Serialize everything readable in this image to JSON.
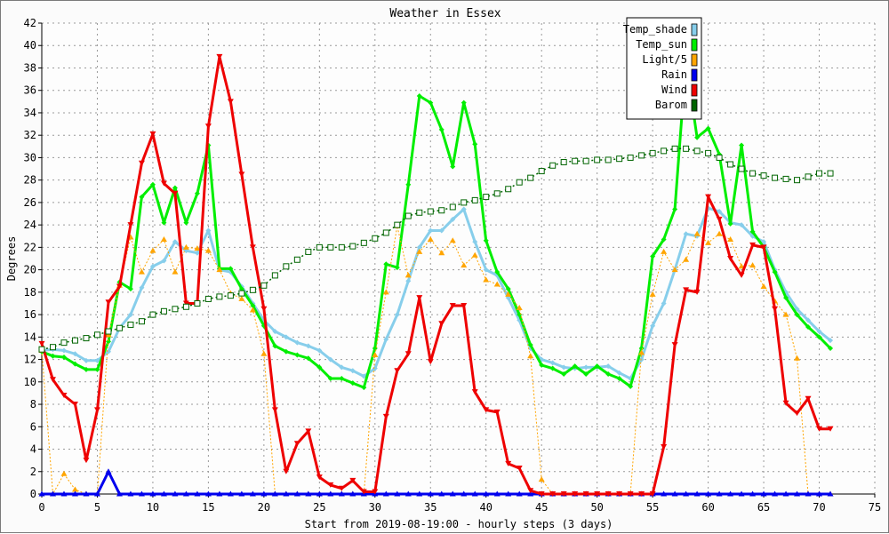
{
  "chart_data": {
    "type": "line",
    "title": "Weather in Essex",
    "xlabel": "Start from 2019-08-19:00 - hourly steps (3 days)",
    "ylabel": "Degrees",
    "xlim": [
      0,
      75
    ],
    "ylim": [
      0,
      42
    ],
    "xticks": [
      0,
      5,
      10,
      15,
      20,
      25,
      30,
      35,
      40,
      45,
      50,
      55,
      60,
      65,
      70,
      75
    ],
    "yticks": [
      0,
      2,
      4,
      6,
      8,
      10,
      12,
      14,
      16,
      18,
      20,
      22,
      24,
      26,
      28,
      30,
      32,
      34,
      36,
      38,
      40,
      42
    ],
    "grid": true,
    "legend_position": "top-right",
    "series": [
      {
        "name": "Temp_shade",
        "color": "#87ceeb",
        "values": [
          12.8,
          12.9,
          12.8,
          12.5,
          11.9,
          11.9,
          12.7,
          14.8,
          16.0,
          18.4,
          20.3,
          20.8,
          22.5,
          21.7,
          21.5,
          23.5,
          20.0,
          19.8,
          18.5,
          17.0,
          15.5,
          14.5,
          14.0,
          13.5,
          13.2,
          12.8,
          12.0,
          11.3,
          11.0,
          10.5,
          11.2,
          13.8,
          16.0,
          19.0,
          22.0,
          23.5,
          23.5,
          24.5,
          25.4,
          22.5,
          20.0,
          19.5,
          17.5,
          15.5,
          13.0,
          12.0,
          11.7,
          11.3,
          11.2,
          11.3,
          11.3,
          11.4,
          10.8,
          10.3,
          12.0,
          15.0,
          17.0,
          20.0,
          23.2,
          23.0,
          25.5,
          25.2,
          24.2,
          24.0,
          23.0,
          22.5,
          20.0,
          18.0,
          16.5,
          15.5,
          14.5,
          13.7
        ]
      },
      {
        "name": "Temp_sun",
        "color": "#00ee00",
        "values": [
          12.7,
          12.3,
          12.2,
          11.6,
          11.1,
          11.1,
          13.6,
          18.9,
          18.3,
          26.5,
          27.6,
          24.2,
          27.3,
          24.2,
          26.8,
          31.1,
          20.1,
          20.1,
          18.3,
          16.8,
          15.0,
          13.2,
          12.7,
          12.4,
          12.1,
          11.3,
          10.3,
          10.3,
          9.9,
          9.5,
          13.0,
          20.5,
          20.2,
          27.6,
          35.5,
          34.9,
          32.5,
          29.2,
          34.9,
          31.2,
          22.6,
          19.8,
          18.3,
          16.0,
          13.3,
          11.5,
          11.2,
          10.7,
          11.4,
          10.7,
          11.4,
          10.7,
          10.3,
          9.6,
          13.0,
          21.2,
          22.7,
          25.4,
          38.6,
          31.8,
          32.6,
          30.3,
          24.1,
          31.1,
          23.4,
          22.0,
          19.8,
          17.5,
          16.0,
          14.9,
          14.0,
          13.0
        ]
      },
      {
        "name": "Light/5",
        "color": "#ffa500",
        "values": [
          12.8,
          0.0,
          1.8,
          0.4,
          0.0,
          0.0,
          14.2,
          18.6,
          22.9,
          19.8,
          21.7,
          22.7,
          19.8,
          22.0,
          21.9,
          21.7,
          20.0,
          17.9,
          17.4,
          16.4,
          12.5,
          0.0,
          0.0,
          0.0,
          0.0,
          0.0,
          0.0,
          0.0,
          0.0,
          0.0,
          12.4,
          18.0,
          23.9,
          19.5,
          21.6,
          22.7,
          21.5,
          22.6,
          20.4,
          21.3,
          19.1,
          18.7,
          17.8,
          16.6,
          12.3,
          1.3,
          0.0,
          0.0,
          0.0,
          0.0,
          0.0,
          0.0,
          0.0,
          0.0,
          12.6,
          17.8,
          21.6,
          20.0,
          20.9,
          23.2,
          22.4,
          23.2,
          22.7,
          20.3,
          20.4,
          18.5,
          17.2,
          16.0,
          12.1,
          0.0,
          0.0,
          0.0
        ]
      },
      {
        "name": "Rain",
        "color": "#0000ee",
        "values": [
          0,
          0,
          0,
          0,
          0,
          0,
          2.0,
          0,
          0,
          0,
          0,
          0,
          0,
          0,
          0,
          0,
          0,
          0,
          0,
          0,
          0,
          0,
          0,
          0,
          0,
          0,
          0,
          0,
          0,
          0,
          0,
          0,
          0,
          0,
          0,
          0,
          0,
          0,
          0,
          0,
          0,
          0,
          0,
          0,
          0,
          0,
          0,
          0,
          0,
          0,
          0,
          0,
          0,
          0,
          0,
          0,
          0,
          0,
          0,
          0,
          0,
          0,
          0,
          0,
          0,
          0,
          0,
          0,
          0,
          0,
          0,
          0
        ]
      },
      {
        "name": "Wind",
        "color": "#ee0000",
        "values": [
          13.4,
          10.2,
          8.8,
          8.0,
          3.0,
          7.5,
          17.1,
          18.5,
          24.0,
          29.5,
          32.1,
          27.7,
          26.8,
          17.0,
          17.0,
          32.8,
          39.0,
          35.0,
          28.5,
          22.0,
          16.5,
          7.5,
          2.0,
          4.5,
          5.6,
          1.5,
          0.8,
          0.5,
          1.2,
          0.2,
          0.2,
          6.9,
          11.0,
          12.5,
          17.5,
          11.8,
          15.2,
          16.8,
          16.8,
          9.1,
          7.5,
          7.3,
          2.7,
          2.3,
          0.3,
          0.0,
          0.0,
          0.0,
          0.0,
          0.0,
          0.0,
          0.0,
          0.0,
          0.0,
          0.0,
          0.0,
          4.2,
          13.3,
          18.2,
          18.0,
          26.5,
          24.5,
          21.0,
          19.5,
          22.2,
          22.0,
          16.5,
          8.1,
          7.2,
          8.5,
          5.8,
          5.8
        ]
      },
      {
        "name": "Barom",
        "color": "#006400",
        "values": [
          12.9,
          13.1,
          13.5,
          13.7,
          13.9,
          14.2,
          14.5,
          14.8,
          15.1,
          15.4,
          16.0,
          16.3,
          16.5,
          16.7,
          17.0,
          17.4,
          17.6,
          17.7,
          17.9,
          18.2,
          18.6,
          19.5,
          20.3,
          20.9,
          21.6,
          22.0,
          22.0,
          22.0,
          22.1,
          22.4,
          22.8,
          23.3,
          24.0,
          24.8,
          25.1,
          25.2,
          25.3,
          25.6,
          26.0,
          26.2,
          26.5,
          26.8,
          27.2,
          27.8,
          28.2,
          28.8,
          29.3,
          29.6,
          29.7,
          29.7,
          29.8,
          29.8,
          29.9,
          30.0,
          30.2,
          30.4,
          30.6,
          30.8,
          30.8,
          30.6,
          30.4,
          30.0,
          29.4,
          29.0,
          28.6,
          28.4,
          28.2,
          28.1,
          28.0,
          28.3,
          28.6,
          28.6
        ]
      }
    ]
  }
}
